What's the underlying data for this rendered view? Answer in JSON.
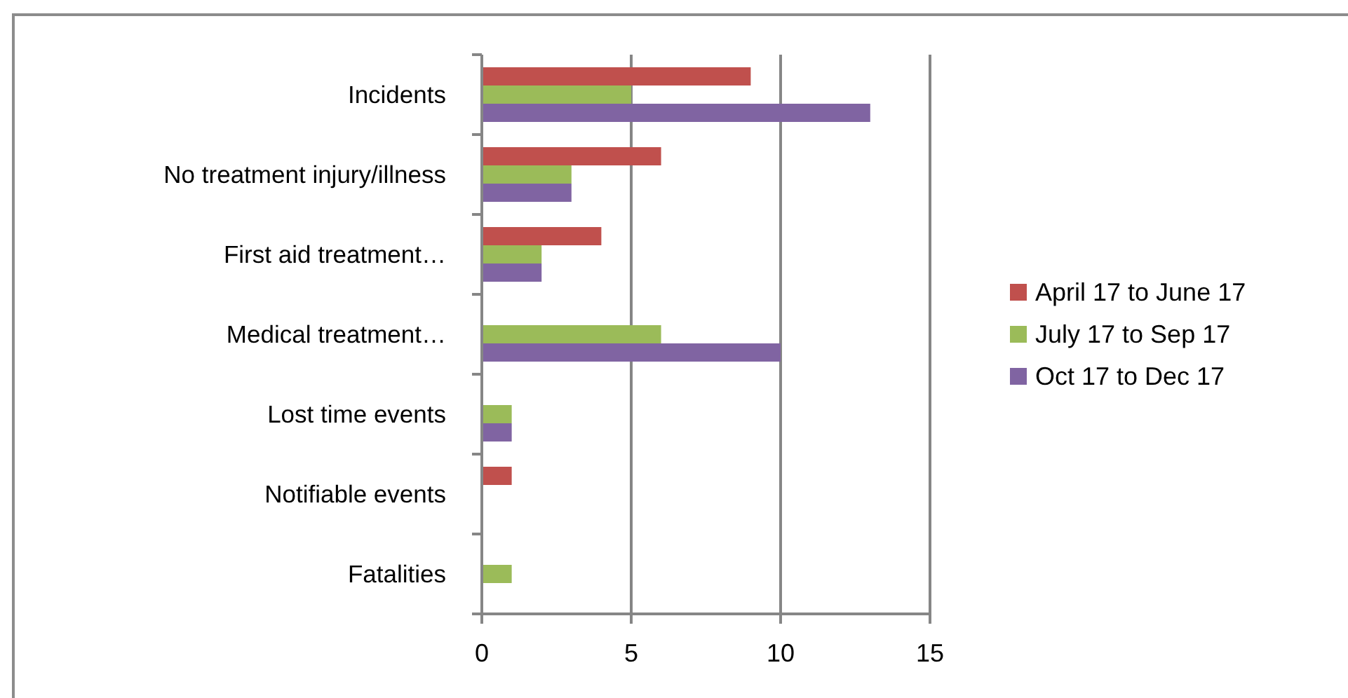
{
  "chart_data": {
    "type": "bar",
    "orientation": "horizontal",
    "categories": [
      "Incidents",
      "No treatment injury/illness",
      "First aid treatment…",
      "Medical treatment…",
      "Lost time events",
      "Notifiable events",
      "Fatalities"
    ],
    "series": [
      {
        "name": "April 17 to June 17",
        "color": "#c0504d",
        "values": [
          9,
          6,
          4,
          0,
          0,
          1,
          0
        ]
      },
      {
        "name": "July 17 to Sep 17",
        "color": "#9bbb59",
        "values": [
          5,
          3,
          2,
          6,
          1,
          0,
          1
        ]
      },
      {
        "name": "Oct 17 to Dec 17",
        "color": "#8064a2",
        "values": [
          13,
          3,
          2,
          10,
          1,
          0,
          0
        ]
      }
    ],
    "xlim": [
      0,
      15
    ],
    "xticks": [
      0,
      5,
      10,
      15
    ],
    "grid": "x",
    "legend": "right"
  }
}
